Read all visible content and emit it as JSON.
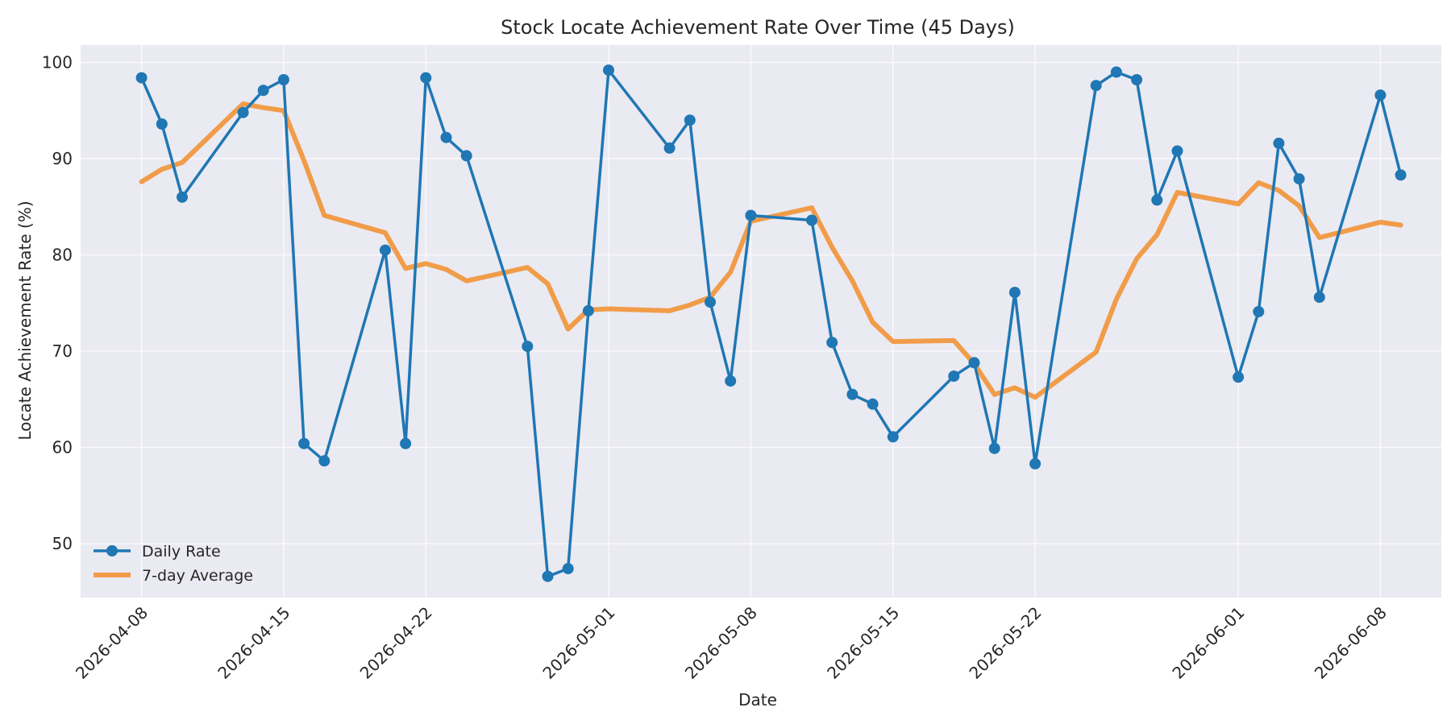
{
  "chart_data": {
    "type": "line",
    "title": "Stock Locate Achievement Rate Over Time (45 Days)",
    "xlabel": "Date",
    "ylabel": "Locate Achievement Rate (%)",
    "x_ticks": [
      "2026-04-08",
      "2026-04-15",
      "2026-04-22",
      "2026-05-01",
      "2026-05-08",
      "2026-05-15",
      "2026-05-22",
      "2026-06-01",
      "2026-06-08"
    ],
    "y_ticks": [
      50,
      60,
      70,
      80,
      90,
      100
    ],
    "ylim": [
      44.4,
      101.8
    ],
    "xlim": [
      "2026-04-05",
      "2026-06-11"
    ],
    "grid": true,
    "legend_position": "lower-left",
    "x": [
      "2026-04-08",
      "2026-04-09",
      "2026-04-10",
      "2026-04-13",
      "2026-04-14",
      "2026-04-15",
      "2026-04-16",
      "2026-04-17",
      "2026-04-20",
      "2026-04-21",
      "2026-04-22",
      "2026-04-23",
      "2026-04-24",
      "2026-04-27",
      "2026-04-28",
      "2026-04-29",
      "2026-04-30",
      "2026-05-01",
      "2026-05-04",
      "2026-05-05",
      "2026-05-06",
      "2026-05-07",
      "2026-05-08",
      "2026-05-11",
      "2026-05-12",
      "2026-05-13",
      "2026-05-14",
      "2026-05-15",
      "2026-05-18",
      "2026-05-19",
      "2026-05-20",
      "2026-05-21",
      "2026-05-22",
      "2026-05-25",
      "2026-05-26",
      "2026-05-27",
      "2026-05-28",
      "2026-05-29",
      "2026-06-01",
      "2026-06-02",
      "2026-06-03",
      "2026-06-04",
      "2026-06-05",
      "2026-06-08",
      "2026-06-09"
    ],
    "series": [
      {
        "name": "Daily Rate",
        "color": "#1f77b4",
        "marker": "circle",
        "values": [
          98.4,
          93.6,
          86.0,
          94.8,
          97.1,
          98.2,
          60.4,
          58.6,
          80.5,
          60.4,
          98.4,
          92.2,
          90.3,
          70.5,
          46.6,
          47.4,
          74.2,
          99.2,
          91.1,
          94.0,
          75.1,
          66.9,
          84.1,
          83.6,
          70.9,
          65.5,
          64.5,
          61.1,
          67.4,
          68.8,
          59.9,
          76.1,
          58.3,
          97.6,
          99.0,
          98.2,
          85.7,
          90.8,
          67.3,
          74.1,
          91.6,
          87.9,
          75.6,
          96.6,
          88.3
        ]
      },
      {
        "name": "7-day Average",
        "color": "#ff7f0e",
        "marker": "none",
        "values": [
          87.6,
          88.9,
          89.6,
          95.7,
          95.3,
          95.0,
          89.8,
          84.1,
          82.3,
          78.6,
          79.1,
          78.5,
          77.3,
          78.7,
          77.0,
          72.3,
          74.3,
          74.4,
          74.2,
          74.8,
          75.6,
          78.2,
          83.5,
          84.9,
          80.8,
          77.3,
          73.0,
          71.0,
          71.1,
          68.7,
          65.5,
          66.2,
          65.2,
          69.9,
          75.4,
          79.6,
          82.1,
          86.5,
          85.3,
          87.5,
          86.7,
          85.1,
          81.8,
          83.4,
          83.1
        ]
      }
    ]
  }
}
